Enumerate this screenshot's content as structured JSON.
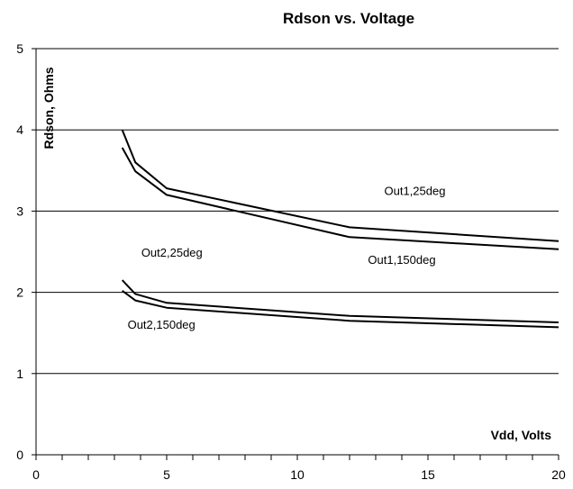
{
  "chart_data": {
    "type": "line",
    "title": "Rdson vs. Voltage",
    "xlabel": "Vdd, Volts",
    "ylabel": "Rdson, Ohms",
    "xlim": [
      0,
      20
    ],
    "ylim": [
      0,
      5
    ],
    "x_ticks": [
      0,
      5,
      10,
      15,
      20
    ],
    "x_minor_step": 1,
    "y_ticks": [
      0,
      1,
      2,
      3,
      4,
      5
    ],
    "grid": "horizontal",
    "legend": "none",
    "series": [
      {
        "name": "Out1,25deg",
        "color": "#000000",
        "points": [
          [
            3.3,
            4.0
          ],
          [
            3.8,
            3.6
          ],
          [
            5.0,
            3.28
          ],
          [
            12.0,
            2.8
          ],
          [
            20.0,
            2.63
          ]
        ]
      },
      {
        "name": "Out1,150deg",
        "color": "#000000",
        "points": [
          [
            3.3,
            3.78
          ],
          [
            3.8,
            3.49
          ],
          [
            5.0,
            3.2
          ],
          [
            12.0,
            2.68
          ],
          [
            20.0,
            2.53
          ]
        ]
      },
      {
        "name": "Out2,25deg",
        "color": "#000000",
        "points": [
          [
            3.3,
            2.15
          ],
          [
            3.8,
            1.98
          ],
          [
            5.0,
            1.87
          ],
          [
            12.0,
            1.71
          ],
          [
            20.0,
            1.63
          ]
        ]
      },
      {
        "name": "Out2,150deg",
        "color": "#000000",
        "points": [
          [
            3.3,
            2.02
          ],
          [
            3.8,
            1.9
          ],
          [
            5.0,
            1.81
          ],
          [
            12.0,
            1.65
          ],
          [
            20.0,
            1.57
          ]
        ]
      }
    ],
    "annotations": [
      {
        "text": "Out1,25deg",
        "x": 14.5,
        "y": 3.2
      },
      {
        "text": "Out1,150deg",
        "x": 14.0,
        "y": 2.35
      },
      {
        "text": "Out2,25deg",
        "x": 5.2,
        "y": 2.44
      },
      {
        "text": "Out2,150deg",
        "x": 4.8,
        "y": 1.55
      }
    ]
  }
}
